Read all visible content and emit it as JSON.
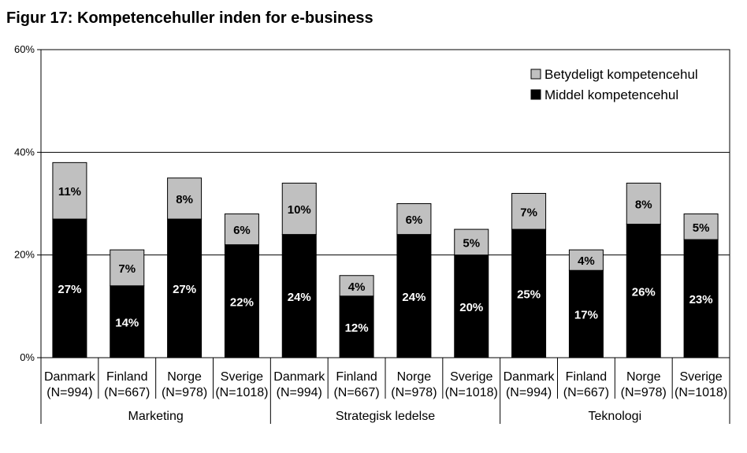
{
  "title": "Figur 17: Kompetencehuller inden for e-business",
  "chart_data": {
    "type": "bar",
    "stacked": true,
    "ylim": [
      0,
      60
    ],
    "yticks": [
      0,
      20,
      40,
      60
    ],
    "ytick_labels": [
      "0%",
      "20%",
      "40%",
      "60%"
    ],
    "grid": true,
    "legend_position": "top-right",
    "categories": [
      {
        "country": "Danmark",
        "n": "(N=994)",
        "group": "Marketing"
      },
      {
        "country": "Finland",
        "n": "(N=667)",
        "group": "Marketing"
      },
      {
        "country": "Norge",
        "n": "(N=978)",
        "group": "Marketing"
      },
      {
        "country": "Sverige",
        "n": "(N=1018)",
        "group": "Marketing"
      },
      {
        "country": "Danmark",
        "n": "(N=994)",
        "group": "Strategisk ledelse"
      },
      {
        "country": "Finland",
        "n": "(N=667)",
        "group": "Strategisk ledelse"
      },
      {
        "country": "Norge",
        "n": "(N=978)",
        "group": "Strategisk ledelse"
      },
      {
        "country": "Sverige",
        "n": "(N=1018)",
        "group": "Strategisk ledelse"
      },
      {
        "country": "Danmark",
        "n": "(N=994)",
        "group": "Teknologi"
      },
      {
        "country": "Finland",
        "n": "(N=667)",
        "group": "Teknologi"
      },
      {
        "country": "Norge",
        "n": "(N=978)",
        "group": "Teknologi"
      },
      {
        "country": "Sverige",
        "n": "(N=1018)",
        "group": "Teknologi"
      }
    ],
    "groups": [
      "Marketing",
      "Strategisk ledelse",
      "Teknologi"
    ],
    "series": [
      {
        "name": "Middel kompetencehul",
        "color": "#000000",
        "label_color": "#ffffff",
        "values": [
          27,
          14,
          27,
          22,
          24,
          12,
          24,
          20,
          25,
          17,
          26,
          23
        ]
      },
      {
        "name": "Betydeligt kompetencehul",
        "color": "#c0c0c0",
        "label_color": "#000000",
        "values": [
          11,
          7,
          8,
          6,
          10,
          4,
          6,
          5,
          7,
          4,
          8,
          5
        ]
      }
    ],
    "legend_order": [
      1,
      0
    ]
  }
}
